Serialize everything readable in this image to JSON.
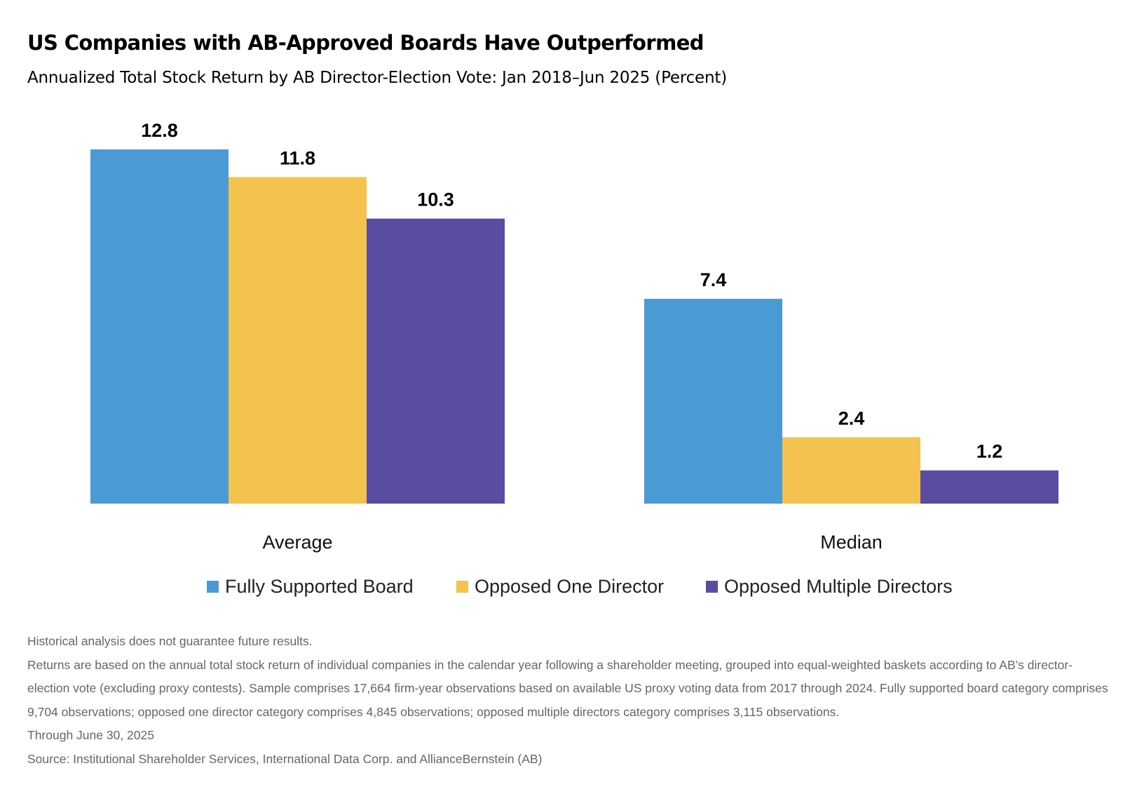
{
  "header": {
    "title": "US Companies with AB-Approved Boards Have Outperformed",
    "subtitle": "Annualized Total Stock Return by AB Director-Election Vote: Jan 2018–Jun 2025 (Percent)"
  },
  "colors": {
    "fully_supported": "#4a9ad4",
    "opposed_one": "#f4c24f",
    "opposed_multiple": "#5a4ca0",
    "text": "#000000",
    "notes_text": "#666666"
  },
  "chart_data": {
    "type": "bar",
    "title": "US Companies with AB-Approved Boards Have Outperformed",
    "subtitle": "Annualized Total Stock Return by AB Director-Election Vote: Jan 2018–Jun 2025 (Percent)",
    "categories": [
      "Average",
      "Median"
    ],
    "series": [
      {
        "name": "Fully Supported Board",
        "values": [
          12.8,
          7.4
        ],
        "labels": [
          "12.8",
          "7.4"
        ],
        "color": "#4a9ad4"
      },
      {
        "name": "Opposed One Director",
        "values": [
          11.8,
          2.4
        ],
        "labels": [
          "11.8",
          "2.4"
        ],
        "color": "#f4c24f"
      },
      {
        "name": "Opposed Multiple Directors",
        "values": [
          10.3,
          1.2
        ],
        "labels": [
          "10.3",
          "1.2"
        ],
        "color": "#5a4ca0"
      }
    ],
    "ylim": [
      0,
      12.8
    ],
    "grid": false,
    "axes_visible": false,
    "legend_position": "bottom",
    "data_labels": true
  },
  "notes": [
    "Historical analysis does not guarantee future results.",
    "Returns are based on the annual total stock return of individual companies in the calendar year following a shareholder meeting, grouped into equal-weighted baskets according to AB’s director-election vote (excluding proxy contests). Sample comprises 17,664 firm-year observations based on available US proxy voting data from 2017 through 2024. Fully supported board category comprises 9,704 observations; opposed one director category comprises 4,845 observations; opposed multiple directors category comprises 3,115 observations.",
    "Through June 30, 2025",
    "Source: Institutional Shareholder Services, International Data Corp. and AllianceBernstein (AB)"
  ]
}
